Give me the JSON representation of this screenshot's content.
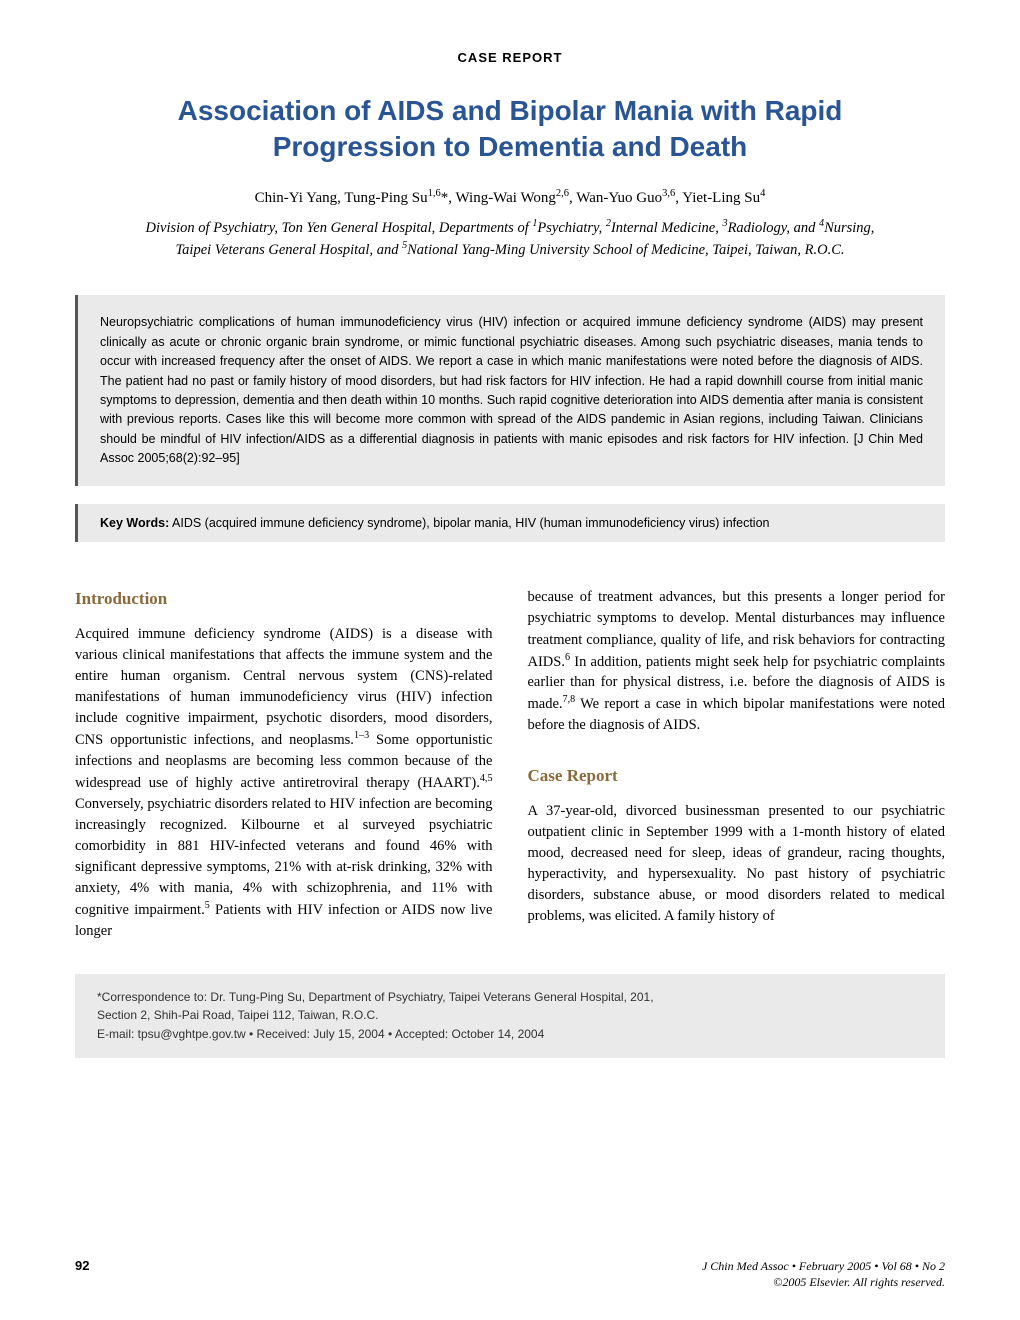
{
  "label": "CASE   REPORT",
  "title": "Association of AIDS and Bipolar Mania with Rapid Progression to Dementia and Death",
  "authors_html": "Chin-Yi Yang, Tung-Ping Su<span class='sup'>1,6</span>*, Wing-Wai Wong<span class='sup'>2,6</span>, Wan-Yuo Guo<span class='sup'>3,6</span>, Yiet-Ling Su<span class='sup'>4</span>",
  "affiliations_html": "Division of Psychiatry, Ton Yen General Hospital, Departments of <span class='sup'>1</span>Psychiatry, <span class='sup'>2</span>Internal Medicine, <span class='sup'>3</span>Radiology, and <span class='sup'>4</span>Nursing, Taipei Veterans General Hospital, and <span class='sup'>5</span>National Yang-Ming University School of Medicine, Taipei, Taiwan, R.O.C.",
  "abstract": "Neuropsychiatric complications of human immunodeficiency virus (HIV) infection or acquired immune deficiency syndrome (AIDS) may present clinically as acute or chronic organic brain syndrome, or mimic functional psychiatric diseases. Among such psychiatric diseases, mania tends to occur with increased frequency after the onset of AIDS. We report a case in which manic manifestations were noted before the diagnosis of AIDS. The patient had no past or family history of mood disorders, but had risk factors for HIV infection. He had a rapid downhill course from initial manic symptoms to depression, dementia and then death within 10 months. Such rapid cognitive deterioration into AIDS dementia after mania is consistent with previous reports. Cases like this will become more common with spread of the AIDS pandemic in Asian regions, including Taiwan. Clinicians should be mindful of HIV infection/AIDS as a differential diagnosis in patients with manic episodes and risk factors for HIV infection. [J Chin Med Assoc 2005;68(2):92–95]",
  "keywords_label": "Key Words:",
  "keywords": " AIDS (acquired immune deficiency syndrome), bipolar mania, HIV (human immunodeficiency virus) infection",
  "intro_heading": "Introduction",
  "intro_text_html": "Acquired immune deficiency syndrome (AIDS) is a disease with various clinical manifestations that affects the immune system and the entire human organism. Central nervous system (CNS)-related manifestations of human immunodeficiency virus (HIV) infection include cognitive impairment, psychotic disorders, mood disorders, CNS opportunistic infections, and neoplasms.<span class='sup'>1–3</span> Some opportunistic infections and neoplasms are becoming less common because of the widespread use of highly active antiretroviral therapy (HAART).<span class='sup'>4,5</span> Conversely, psychiatric disorders related to HIV infection are becoming increasingly recognized. Kilbourne et al surveyed psychiatric comorbidity in 881 HIV-infected veterans and found 46% with significant depressive symptoms, 21% with at-risk drinking, 32% with anxiety, 4% with mania, 4% with schizophrenia, and 11% with cognitive impairment.<span class='sup'>5</span> Patients with HIV infection or AIDS now live longer",
  "col2_continue_html": "because of treatment advances, but this presents a longer period for psychiatric symptoms to develop. Mental disturbances may influence treatment compliance, quality of life, and risk behaviors for contracting AIDS.<span class='sup'>6</span> In addition, patients might seek help for psychiatric complaints earlier than for physical distress, i.e. before the diagnosis of AIDS is made.<span class='sup'>7,8</span> We report a case in which bipolar manifestations were noted before the diagnosis of AIDS.",
  "case_heading": "Case Report",
  "case_text": "A 37-year-old, divorced businessman presented to our psychiatric outpatient clinic in September 1999 with a 1-month history of elated mood, decreased need for sleep, ideas of grandeur, racing thoughts, hyperactivity, and hypersexuality. No past history of psychiatric disorders, substance abuse, or mood disorders related to medical problems, was elicited. A family history of",
  "correspondence_line1": "*Correspondence to: Dr. Tung-Ping Su, Department of Psychiatry, Taipei Veterans General Hospital, 201,",
  "correspondence_line2": "Section 2, Shih-Pai Road, Taipei 112, Taiwan, R.O.C.",
  "correspondence_line3": "E-mail: tpsu@vghtpe.gov.tw  •  Received: July 15, 2004  •  Accepted: October 14, 2004",
  "page_number": "92",
  "footer_journal": "J Chin Med Assoc • February 2005 • Vol 68 • No 2",
  "footer_copyright": "©2005 Elsevier. All rights reserved.",
  "colors": {
    "title": "#2a5594",
    "heading": "#8a6a3a",
    "box_bg": "#eaeaea",
    "box_border": "#555555",
    "text": "#000000"
  },
  "fontsizes": {
    "title": 28,
    "body": 14.5,
    "abstract": 12.5,
    "heading": 17,
    "label": 13
  }
}
